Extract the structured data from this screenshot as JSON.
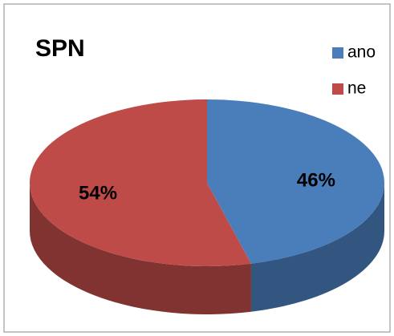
{
  "chart_data": {
    "type": "pie",
    "title": "SPN",
    "categories": [
      "ano",
      "ne"
    ],
    "values": [
      46,
      54
    ],
    "value_labels": [
      "46%",
      "54%"
    ],
    "colors": [
      "#4a7ebb",
      "#be4b48"
    ],
    "legend": "top-right"
  }
}
